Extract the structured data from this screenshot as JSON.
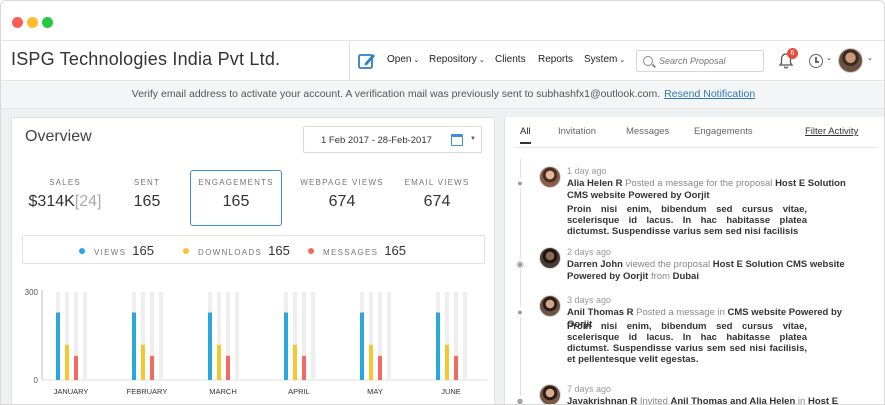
{
  "company": "ISPG Technologies India Pvt Ltd.",
  "nav": {
    "items": [
      {
        "label": "Open",
        "has_menu": true
      },
      {
        "label": "Repository",
        "has_menu": true
      },
      {
        "label": "Clients",
        "has_menu": false
      },
      {
        "label": "Reports",
        "has_menu": false
      },
      {
        "label": "System",
        "has_menu": true
      }
    ],
    "search_placeholder": "Search Proposal",
    "notification_count": "6"
  },
  "notice": {
    "text": "Verify email address to activate your account.  A verification mail was previously sent to subhashfx1@outlook.com.",
    "link": "Resend Notification"
  },
  "overview": {
    "title": "Overview",
    "date_range": "1 Feb 2017 - 28-Feb-2017",
    "stats": [
      {
        "label": "SALES",
        "value": "$314K",
        "extra": "[24]"
      },
      {
        "label": "SENT",
        "value": "165",
        "extra": ""
      },
      {
        "label": "ENGAGEMENTS",
        "value": "165",
        "extra": ""
      },
      {
        "label": "WEBPAGE VIEWS",
        "value": "674",
        "extra": ""
      },
      {
        "label": "EMAIL VIEWS",
        "value": "674",
        "extra": ""
      }
    ],
    "legend": [
      {
        "label": "VIEWS",
        "value": "165",
        "color": "#2aa7df"
      },
      {
        "label": "DOWNLOADS",
        "value": "165",
        "color": "#f7c530"
      },
      {
        "label": "MESSAGES",
        "value": "165",
        "color": "#ef6b64"
      }
    ]
  },
  "chart_data": {
    "type": "bar",
    "categories": [
      "JANUARY",
      "FEBRUARY",
      "MARCH",
      "APRIL",
      "MAY",
      "JUNE"
    ],
    "ylim": [
      0,
      300
    ],
    "yticks": [
      "300",
      "0"
    ],
    "max_value": 300,
    "series": [
      {
        "name": "VIEWS",
        "color": "#2aa7df",
        "values": [
          230,
          230,
          230,
          230,
          230,
          230
        ]
      },
      {
        "name": "DOWNLOADS",
        "color": "#f7c530",
        "values": [
          120,
          120,
          120,
          120,
          120,
          120
        ]
      },
      {
        "name": "MESSAGES",
        "color": "#ef6b64",
        "values": [
          82,
          82,
          82,
          82,
          82,
          82
        ]
      }
    ],
    "background_color": "#eeeeee"
  },
  "activity": {
    "tabs": [
      "All",
      "Invitation",
      "Messages",
      "Engagements"
    ],
    "filter_label": "Filter Activity",
    "items": [
      {
        "time": "1 day ago",
        "actor": "Alia Helen R",
        "action": "Posted a message for the proposal",
        "target": "Host E Solution CMS website Powered by Oorjit",
        "tail": "",
        "message": "Proin nisi enim, bibendum sed cursus vitae, scelerisque id lacus. In hac habitasse platea dictumst. Suspendisse varius sem sed nisi facilisis",
        "icon": "message-icon"
      },
      {
        "time": "2 days ago",
        "actor": "Darren John",
        "action": "viewed the proposal",
        "target": "Host E Solution CMS website Powered by Oorjit",
        "tail_pre": "from",
        "tail": "Dubai",
        "message": "",
        "icon": "location-icon"
      },
      {
        "time": "3 days ago",
        "actor": "Anil Thomas R",
        "action": "Posted a message in",
        "target": "CMS website Powered by Oorjit",
        "tail": "",
        "message": "Proin nisi enim, bibendum sed cursus vitae, scelerisque id lacus. In hac habitasse platea dictumst. Suspendisse varius sem sed nisi facilisis, et pellentesque velit egestas.",
        "icon": "message-icon"
      },
      {
        "time": "7 days ago",
        "actor": "Jayakrishnan R",
        "action": "Invited",
        "target": "Anil Thomas and Alia Helen",
        "tail_pre": "in",
        "tail": "Host E Solution",
        "message": "",
        "icon": "user-icon"
      }
    ]
  }
}
